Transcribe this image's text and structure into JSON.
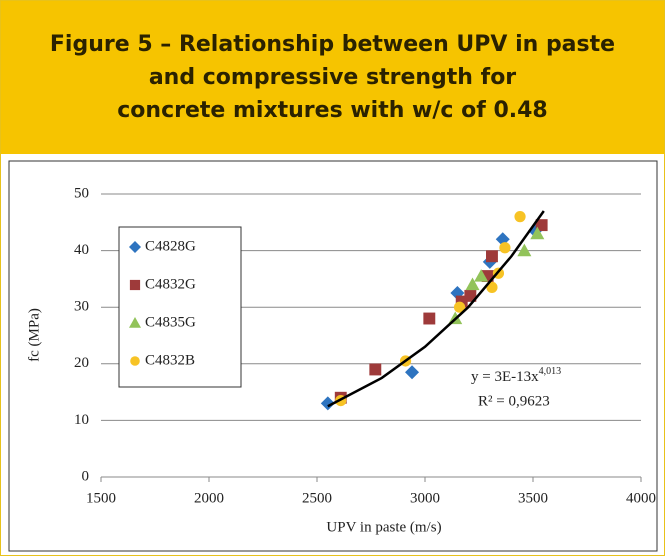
{
  "header": {
    "title": [
      "Figure 5 – Relationship between UPV in paste",
      "and compressive strength for",
      "concrete mixtures with w/c of 0.48"
    ]
  },
  "chart_data": {
    "type": "scatter",
    "x_label": "UPV in paste (m/s)",
    "y_label": "fc (MPa)",
    "xlim": [
      1500,
      4000
    ],
    "xticks": [
      1500,
      2000,
      2500,
      3000,
      3500,
      4000
    ],
    "ylim": [
      0,
      50
    ],
    "yticks": [
      0,
      10,
      20,
      30,
      40,
      50
    ],
    "grid": true,
    "legend": "upper left",
    "series": [
      {
        "name": "C4828G",
        "color": "#2e74c0",
        "marker": "diamond",
        "x": [
          2550,
          2940,
          3150,
          3300,
          3360,
          3510
        ],
        "values": [
          13,
          18.5,
          32.5,
          38,
          42,
          43.5
        ]
      },
      {
        "name": "C4832G",
        "color": "#9e3a3a",
        "marker": "square",
        "x": [
          2610,
          2770,
          3020,
          3170,
          3210,
          3290,
          3310,
          3540
        ],
        "values": [
          14,
          19,
          28,
          31,
          32,
          35.5,
          39,
          44.5
        ]
      },
      {
        "name": "C4835G",
        "color": "#92c35a",
        "marker": "triangle",
        "x": [
          3140,
          3220,
          3260,
          3460,
          3520
        ],
        "values": [
          28,
          34,
          35.5,
          40,
          43
        ]
      },
      {
        "name": "C4832B",
        "color": "#f7c325",
        "marker": "circle",
        "x": [
          2610,
          2910,
          3160,
          3310,
          3340,
          3370,
          3440
        ],
        "values": [
          13.5,
          20.5,
          30,
          33.5,
          36,
          40.5,
          46
        ]
      }
    ],
    "trendline": {
      "equation": "y = 3E-13x",
      "exponent": "4,013",
      "r2": "R² = 0,9623",
      "color": "#000000",
      "x": [
        2550,
        2800,
        3000,
        3200,
        3400,
        3550
      ],
      "values": [
        12.5,
        17.5,
        23,
        30,
        39,
        47
      ]
    }
  }
}
